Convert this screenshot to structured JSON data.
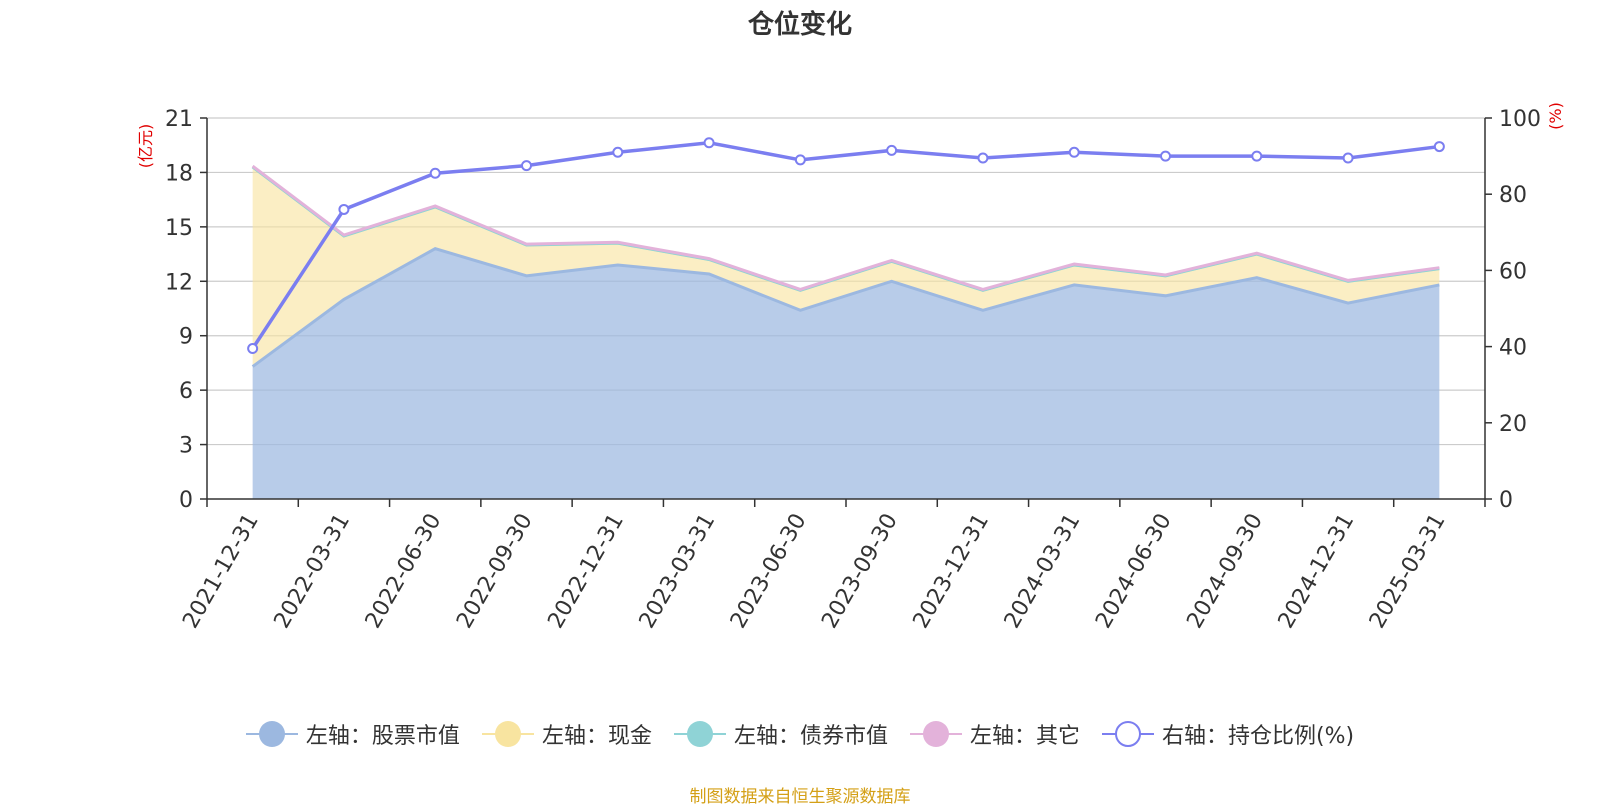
{
  "chart_data": {
    "type": "area",
    "title": "仓位变化",
    "categories": [
      "2021-12-31",
      "2022-03-31",
      "2022-06-30",
      "2022-09-30",
      "2022-12-31",
      "2023-03-31",
      "2023-06-30",
      "2023-09-30",
      "2023-12-31",
      "2024-03-31",
      "2024-06-30",
      "2024-09-30",
      "2024-12-31",
      "2025-03-31"
    ],
    "left_axis": {
      "label": "(亿元)",
      "min": 0,
      "max": 21,
      "ticks": [
        "0",
        "3",
        "6",
        "9",
        "12",
        "15",
        "18",
        "21"
      ]
    },
    "right_axis": {
      "label": "(%)",
      "min": 0,
      "max": 100,
      "ticks": [
        "0",
        "20",
        "40",
        "60",
        "80",
        "100"
      ]
    },
    "series": [
      {
        "name": "左轴：股票市值",
        "axis": "left",
        "color": "#9cb8e0",
        "values": [
          7.3,
          11.0,
          13.8,
          12.3,
          12.9,
          12.4,
          10.4,
          12.0,
          10.4,
          11.8,
          11.2,
          12.2,
          10.8,
          11.8
        ]
      },
      {
        "name": "左轴：现金",
        "axis": "left",
        "color": "#f8e4a0",
        "values": [
          11.0,
          3.5,
          2.3,
          1.7,
          1.2,
          0.8,
          1.1,
          1.1,
          1.1,
          1.1,
          1.1,
          1.3,
          1.2,
          0.9
        ]
      },
      {
        "name": "左轴：债券市值",
        "axis": "left",
        "color": "#8fd3d6",
        "values": [
          0,
          0,
          0,
          0,
          0,
          0,
          0,
          0,
          0,
          0,
          0,
          0,
          0,
          0
        ]
      },
      {
        "name": "左轴：其它",
        "axis": "left",
        "color": "#e3b2da",
        "values": [
          0.05,
          0.05,
          0.05,
          0.05,
          0.05,
          0.05,
          0.05,
          0.05,
          0.05,
          0.05,
          0.05,
          0.05,
          0.05,
          0.05
        ]
      },
      {
        "name": "右轴：持仓比例(%)",
        "axis": "right",
        "color": "#7b7ef0",
        "values": [
          39.5,
          76.0,
          85.5,
          87.5,
          91.0,
          93.5,
          89.0,
          91.5,
          89.5,
          91.0,
          90.0,
          90.0,
          89.5,
          92.5
        ]
      }
    ],
    "source": "制图数据来自恒生聚源数据库"
  }
}
